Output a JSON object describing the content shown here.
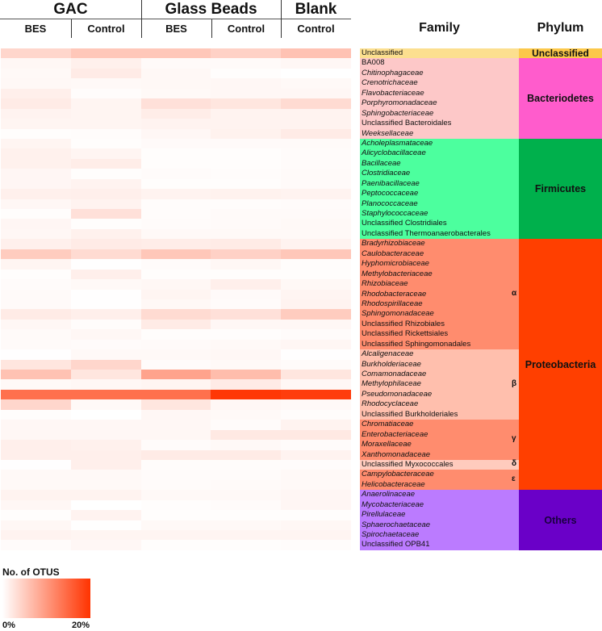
{
  "chart_data": {
    "type": "heatmap",
    "title": "",
    "legend": {
      "title": "No. of OTUS",
      "min_label": "0%",
      "max_label": "20%",
      "min": 0,
      "max": 20,
      "color_low": "#ffffff",
      "color_high": "#ff3300"
    },
    "column_groups": [
      {
        "label": "GAC",
        "span": 2
      },
      {
        "label": "Glass Beads",
        "span": 2
      },
      {
        "label": "Blank",
        "span": 1
      }
    ],
    "columns": [
      "BES",
      "Control",
      "BES",
      "Control",
      "Control"
    ],
    "row_header": "Family",
    "phylum_header": "Phylum",
    "rows": [
      {
        "family": "Unclassified",
        "italic": false,
        "values": [
          4,
          5.5,
          5.5,
          4.5,
          6
        ]
      },
      {
        "family": "BA008",
        "italic": false,
        "values": [
          0.8,
          1.5,
          0.5,
          0.5,
          0.8
        ]
      },
      {
        "family": "Chitinophagaceae",
        "italic": true,
        "values": [
          0.6,
          2,
          0.7,
          0.2,
          0
        ]
      },
      {
        "family": "Crenotrichaceae",
        "italic": true,
        "values": [
          0.7,
          0.6,
          0.7,
          0.8,
          0.6
        ]
      },
      {
        "family": "Flavobacteriaceae",
        "italic": true,
        "values": [
          1.6,
          0.3,
          0.6,
          0.8,
          0.8
        ]
      },
      {
        "family": "Porphyromonadaceae",
        "italic": true,
        "values": [
          2,
          1,
          3,
          2.5,
          3.5
        ]
      },
      {
        "family": "Sphingobacteriaceae",
        "italic": true,
        "values": [
          1.2,
          1,
          1.8,
          1.2,
          1.2
        ]
      },
      {
        "family": "Unclassified Bacteroidales",
        "italic": false,
        "values": [
          1,
          1,
          1.2,
          1.2,
          1.2
        ]
      },
      {
        "family": "Weeksellaceae",
        "italic": true,
        "values": [
          0.2,
          0.3,
          0.8,
          1.3,
          2
        ]
      },
      {
        "family": "Acholeplasmataceae",
        "italic": true,
        "values": [
          1,
          0.2,
          0.5,
          0.5,
          0.5
        ]
      },
      {
        "family": "Alicyclobacillaceae",
        "italic": true,
        "values": [
          1.4,
          1,
          0.2,
          0.2,
          0.4
        ]
      },
      {
        "family": "Bacillaceae",
        "italic": true,
        "values": [
          1.4,
          1.8,
          0.2,
          0.2,
          0.4
        ]
      },
      {
        "family": "Clostridiaceae",
        "italic": true,
        "values": [
          0.9,
          0.2,
          0.4,
          0.3,
          0.5
        ]
      },
      {
        "family": "Paenibacillaceae",
        "italic": true,
        "values": [
          0.9,
          1.2,
          0.2,
          0.2,
          0.5
        ]
      },
      {
        "family": "Peptococcaceae",
        "italic": true,
        "values": [
          1.5,
          1.6,
          1.2,
          1.3,
          1.2
        ]
      },
      {
        "family": "Planococcaceae",
        "italic": true,
        "values": [
          0.8,
          1.2,
          0.3,
          0.3,
          0.4
        ]
      },
      {
        "family": "Staphylococcaceae",
        "italic": true,
        "values": [
          0.2,
          3,
          0.3,
          0.5,
          0.5
        ]
      },
      {
        "family": "Unclassified Clostridiales",
        "italic": false,
        "values": [
          0.9,
          0.2,
          0.4,
          0.5,
          0.6
        ]
      },
      {
        "family": "Unclassified Thermoanaerobacterales",
        "italic": false,
        "values": [
          0.8,
          1.4,
          0.6,
          0.6,
          0.6
        ]
      },
      {
        "family": "Bradyrhizobiaceae",
        "italic": true,
        "values": [
          1.5,
          2,
          1.8,
          2,
          1.2
        ]
      },
      {
        "family": "Caulobacteraceae",
        "italic": true,
        "values": [
          5,
          3.5,
          5.5,
          4.5,
          5.5
        ]
      },
      {
        "family": "Hyphomicrobiaceae",
        "italic": true,
        "values": [
          1,
          0.1,
          0.4,
          0.8,
          0.3
        ]
      },
      {
        "family": "Methylobacteriaceae",
        "italic": true,
        "values": [
          0.2,
          1.6,
          0.2,
          0.2,
          0.2
        ]
      },
      {
        "family": "Rhizobiaceae",
        "italic": true,
        "values": [
          0.4,
          0.6,
          0.8,
          1.6,
          0.7
        ]
      },
      {
        "family": "Rhodobacteraceae",
        "italic": true,
        "values": [
          0.5,
          0.1,
          1,
          0.5,
          1
        ]
      },
      {
        "family": "Rhodospirillaceae",
        "italic": true,
        "values": [
          0.5,
          0.1,
          0.7,
          0.4,
          1.2
        ]
      },
      {
        "family": "Sphingomonadaceae",
        "italic": true,
        "values": [
          2,
          1.6,
          3.5,
          3,
          5
        ]
      },
      {
        "family": "Unclassified Rhizobiales",
        "italic": false,
        "values": [
          0.8,
          0.3,
          2,
          0.8,
          0.8
        ]
      },
      {
        "family": "Unclassified Rickettsiales",
        "italic": false,
        "values": [
          0.5,
          0.8,
          0.2,
          0.2,
          0.4
        ]
      },
      {
        "family": "Unclassified Sphingomonadales",
        "italic": false,
        "values": [
          0.5,
          0.4,
          0.5,
          0.6,
          0.9
        ]
      },
      {
        "family": "Alcaligenaceae",
        "italic": true,
        "values": [
          0.1,
          0.6,
          0.6,
          0.8,
          0.1
        ]
      },
      {
        "family": "Burkholderiaceae",
        "italic": true,
        "values": [
          2.5,
          4,
          0.4,
          0.6,
          0.4
        ]
      },
      {
        "family": "Comamonadaceae",
        "italic": true,
        "values": [
          6,
          2.5,
          9,
          6.5,
          2.5
        ]
      },
      {
        "family": "Methylophilaceae",
        "italic": true,
        "values": [
          0.6,
          0.8,
          1,
          2,
          0.8
        ]
      },
      {
        "family": "Pseudomonadaceae",
        "italic": true,
        "values": [
          14,
          14,
          14,
          19.5,
          19
        ]
      },
      {
        "family": "Rhodocyclaceae",
        "italic": true,
        "values": [
          4,
          0.6,
          2.5,
          0.8,
          0.6
        ]
      },
      {
        "family": "Unclassified Burkholderiales",
        "italic": false,
        "values": [
          0.2,
          0,
          0.8,
          0.6,
          0.3
        ]
      },
      {
        "family": "Chromatiaceae",
        "italic": true,
        "values": [
          0.8,
          0.8,
          0.8,
          0.4,
          1.2
        ]
      },
      {
        "family": "Enterobacteriaceae",
        "italic": true,
        "values": [
          0.8,
          0.8,
          0.8,
          2.2,
          2.2
        ]
      },
      {
        "family": "Moraxellaceae",
        "italic": true,
        "values": [
          1.6,
          1.4,
          0.4,
          0.6,
          0.4
        ]
      },
      {
        "family": "Xanthomonadaceae",
        "italic": true,
        "values": [
          1.6,
          1.6,
          2,
          2,
          1.2
        ]
      },
      {
        "family": "Unclassified Myxococcales",
        "italic": false,
        "values": [
          0.1,
          1.6,
          0.3,
          0.3,
          0.3
        ]
      },
      {
        "family": "Campylobacteraceae",
        "italic": true,
        "values": [
          0.6,
          0.6,
          0.4,
          0.4,
          0.6
        ]
      },
      {
        "family": "Helicobacteraceae",
        "italic": true,
        "values": [
          0.6,
          0.6,
          0.4,
          0.5,
          0.6
        ]
      },
      {
        "family": "Anaerolinaceae",
        "italic": true,
        "values": [
          1.2,
          1.2,
          0.6,
          0.6,
          0.9
        ]
      },
      {
        "family": "Mycobacteriaceae",
        "italic": true,
        "values": [
          0.8,
          0,
          0.2,
          0.4,
          0.9
        ]
      },
      {
        "family": "Pirellulaceae",
        "italic": true,
        "values": [
          0.2,
          1.2,
          0.2,
          0.2,
          0.2
        ]
      },
      {
        "family": "Sphaerochaetaceae",
        "italic": true,
        "values": [
          0.8,
          0.1,
          0.6,
          0.6,
          0.8
        ]
      },
      {
        "family": "Spirochaetaceae",
        "italic": true,
        "values": [
          1.2,
          1,
          1,
          1,
          1
        ]
      },
      {
        "family": "Unclassified OPB41",
        "italic": false,
        "values": [
          0.4,
          0.8,
          0.2,
          0.2,
          0.3
        ]
      }
    ],
    "family_groups": [
      {
        "start": 0,
        "count": 1,
        "color": "#fcdf8f"
      },
      {
        "start": 1,
        "count": 8,
        "color": "#fdc8c8"
      },
      {
        "start": 9,
        "count": 10,
        "color": "#4cff9e"
      },
      {
        "start": 19,
        "count": 11,
        "color": "#ff8c6e",
        "greek": "α"
      },
      {
        "start": 30,
        "count": 7,
        "color": "#ffbfad",
        "greek": "β"
      },
      {
        "start": 37,
        "count": 4,
        "color": "#ff8c6e",
        "greek": "γ"
      },
      {
        "start": 41,
        "count": 1,
        "color": "#ffcbbd",
        "greek": "δ"
      },
      {
        "start": 42,
        "count": 2,
        "color": "#ff8c6e",
        "greek": "ε"
      },
      {
        "start": 44,
        "count": 6,
        "color": "#bb7bff"
      }
    ],
    "phyla": [
      {
        "label": "Unclassified",
        "start": 0,
        "count": 1,
        "color": "#fcc84a"
      },
      {
        "label": "Bacteriodetes",
        "start": 1,
        "count": 8,
        "color": "#ff5ccc"
      },
      {
        "label": "Firmicutes",
        "start": 9,
        "count": 10,
        "color": "#00b04c"
      },
      {
        "label": "Proteobacteria",
        "start": 19,
        "count": 25,
        "color": "#ff3f00"
      },
      {
        "label": "Others",
        "start": 44,
        "count": 6,
        "color": "#6a00c8"
      }
    ]
  }
}
